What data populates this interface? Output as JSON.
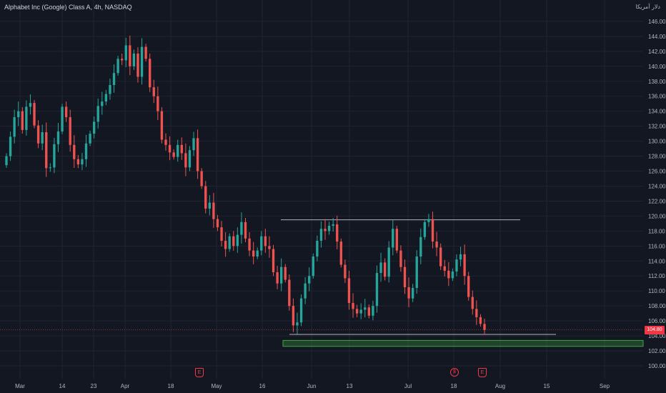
{
  "header": {
    "title": "Alphabet Inc (Google) Class A, 4h, NASDAQ",
    "currency": "دلار آمریکا"
  },
  "price_tag": "104.80",
  "events": [
    {
      "icon": "earnings-icon",
      "label": "E",
      "date": "Apr 25"
    },
    {
      "icon": "dividend-icon",
      "label": "$",
      "date": "Jul 18"
    },
    {
      "icon": "earnings-icon",
      "label": "E",
      "date": "Jul 25"
    }
  ],
  "colors": {
    "background": "#131722",
    "up": "#26a69a",
    "down": "#ef5350",
    "grid": "#1f2431",
    "resistance_line": "#b2b5be",
    "support_zone": "#2e7d32",
    "last_price": "#f23645"
  },
  "chart_data": {
    "type": "candlestick",
    "title": "Alphabet Inc (Google) Class A, 4h, NASDAQ",
    "ylim": [
      99,
      148
    ],
    "y_ticks": [
      "100.00",
      "102.00",
      "104.00",
      "106.00",
      "108.00",
      "110.00",
      "112.00",
      "114.00",
      "116.00",
      "118.00",
      "120.00",
      "122.00",
      "124.00",
      "126.00",
      "128.00",
      "130.00",
      "132.00",
      "134.00",
      "136.00",
      "138.00",
      "140.00",
      "142.00",
      "144.00",
      "146.00"
    ],
    "x_ticks": [
      "Mar",
      "14",
      "23",
      "Apr",
      "18",
      "May",
      "16",
      "Jun",
      "13",
      "Jul",
      "18",
      "Aug",
      "15",
      "Sep"
    ],
    "last_price": 104.8,
    "annotations": {
      "resistance": 119.5,
      "support": 104.2,
      "support_zone": [
        102.6,
        103.4
      ]
    },
    "closes": [
      128.0,
      130.6,
      133.2,
      134.0,
      131.5,
      134.6,
      135.1,
      132.1,
      129.7,
      131.2,
      126.4,
      126.5,
      129.6,
      131.3,
      134.6,
      133.2,
      129.5,
      127.6,
      126.9,
      127.6,
      129.7,
      131.0,
      132.6,
      134.7,
      135.3,
      136.3,
      137.5,
      139.1,
      141.0,
      140.8,
      142.8,
      140.0,
      141.7,
      138.6,
      142.6,
      141.0,
      137.2,
      136.0,
      134.0,
      130.2,
      129.5,
      128.5,
      127.9,
      129.5,
      128.4,
      126.5,
      128.8,
      130.4,
      126.0,
      124.0,
      121.0,
      121.8,
      119.6,
      118.5,
      116.7,
      115.6,
      117.3,
      116.0,
      117.5,
      119.2,
      117.0,
      115.4,
      114.6,
      115.4,
      117.3,
      116.0,
      115.6,
      112.5,
      111.0,
      113.2,
      111.5,
      108.0,
      105.4,
      105.8,
      109.0,
      111.0,
      112.0,
      114.6,
      116.7,
      118.3,
      118.0,
      118.7,
      118.9,
      116.6,
      113.5,
      111.7,
      108.4,
      107.6,
      107.0,
      107.5,
      107.8,
      106.7,
      108.0,
      112.4,
      113.8,
      111.9,
      115.8,
      118.3,
      115.4,
      113.2,
      110.5,
      109.0,
      110.4,
      114.6,
      117.2,
      119.2,
      119.6,
      116.6,
      115.8,
      113.3,
      112.7,
      111.7,
      112.6,
      114.2,
      114.9,
      112.0,
      109.2,
      107.6,
      106.5,
      105.6,
      104.8
    ]
  }
}
